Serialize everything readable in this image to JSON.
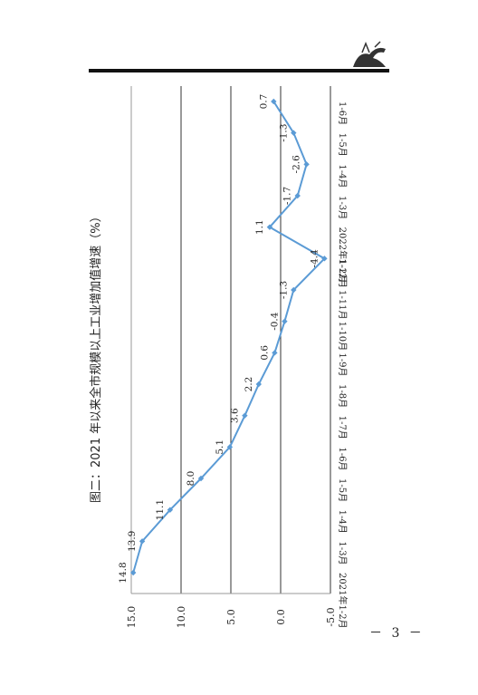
{
  "page": {
    "number": "－ 3 －"
  },
  "chart_data": {
    "type": "line",
    "title": "图二：2021 年以来全市规模以上工业增加值增速（%）",
    "xlabel": "",
    "ylabel": "",
    "categories": [
      "2021年1-2月",
      "1-3月",
      "1-4月",
      "1-5月",
      "1-6月",
      "1-7月",
      "1-8月",
      "1-9月",
      "1-10月",
      "1-11月",
      "1-12月",
      "2022年1-2月",
      "1-3月",
      "1-4月",
      "1-5月",
      "1-6月"
    ],
    "series": [
      {
        "values": [
          14.8,
          13.9,
          11.1,
          8.0,
          5.1,
          3.6,
          2.2,
          0.6,
          -0.4,
          -1.3,
          -4.4,
          1.1,
          -1.7,
          -2.6,
          -1.3,
          0.7
        ]
      }
    ],
    "data_labels": [
      "14.8",
      "13.9",
      "11.1",
      "8.0",
      "5.1",
      "3.6",
      "2.2",
      "0.6",
      "-0.4",
      "-1.3",
      "-4.4",
      "1.1",
      "-1.7",
      "-2.6",
      "-1.3",
      "0.7"
    ],
    "y_ticks": [
      15.0,
      10.0,
      5.0,
      0.0,
      -5.0
    ],
    "y_tick_labels": [
      "15.0",
      "10.0",
      "5.0",
      "0.0",
      "-5.0"
    ],
    "ylim": [
      -5,
      15
    ],
    "grid": true,
    "orientation": "rotated-90-clockwise",
    "colors": {
      "series": "#5b9bd5",
      "grid": "#333333",
      "axis": "#999999"
    }
  }
}
